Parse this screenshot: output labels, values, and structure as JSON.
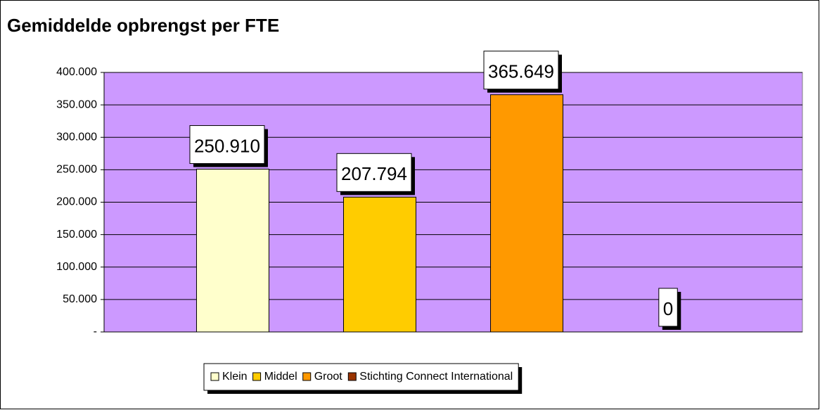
{
  "chart_data": {
    "type": "bar",
    "title": "Gemiddelde opbrengst per FTE",
    "series": [
      {
        "name": "Klein",
        "color": "#ffffcc",
        "values": [
          250910
        ],
        "value_labels": [
          "250.910"
        ]
      },
      {
        "name": "Middel",
        "color": "#ffcc00",
        "values": [
          207794
        ],
        "value_labels": [
          "207.794"
        ]
      },
      {
        "name": "Groot",
        "color": "#ff9900",
        "values": [
          365649
        ],
        "value_labels": [
          "365.649"
        ]
      },
      {
        "name": "Stichting Connect International",
        "color": "#993300",
        "values": [
          0
        ]
      }
    ],
    "ylim": [
      0,
      400000
    ],
    "yticks": [
      {
        "value": 0,
        "label": "-"
      },
      {
        "value": 50000,
        "label": "50.000"
      },
      {
        "value": 100000,
        "label": "100.000"
      },
      {
        "value": 150000,
        "label": "150.000"
      },
      {
        "value": 200000,
        "label": "200.000"
      },
      {
        "value": 250000,
        "label": "250.000"
      },
      {
        "value": 300000,
        "label": "300.000"
      },
      {
        "value": 350000,
        "label": "350.000"
      },
      {
        "value": 400000,
        "label": "400.000"
      }
    ],
    "grid": true,
    "plot_background": "#cc99ff",
    "legend": "bottom"
  }
}
